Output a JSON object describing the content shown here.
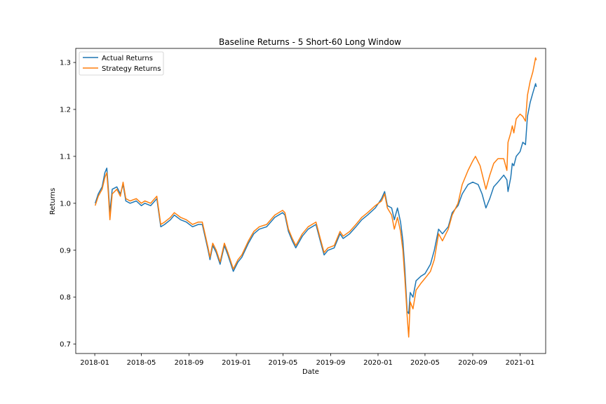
{
  "chart_data": {
    "type": "line",
    "title": "Baseline Returns - 5 Short-60 Long Window",
    "xlabel": "Date",
    "ylabel": "Returns",
    "x_ticks": [
      "2018-01",
      "2018-05",
      "2018-09",
      "2019-01",
      "2019-05",
      "2019-09",
      "2020-01",
      "2020-05",
      "2020-09",
      "2021-01"
    ],
    "y_ticks": [
      "0.7",
      "0.8",
      "0.9",
      "1.0",
      "1.1",
      "1.2",
      "1.3"
    ],
    "xlim": [
      "2017-11-13",
      "2021-03-08"
    ],
    "ylim": [
      0.68,
      1.33
    ],
    "grid": false,
    "legend_position": "top-left",
    "series": [
      {
        "name": "Actual Returns",
        "color": "#1f77b4",
        "points": [
          [
            "2018-01-02",
            1.0
          ],
          [
            "2018-01-10",
            1.02
          ],
          [
            "2018-01-20",
            1.035
          ],
          [
            "2018-01-27",
            1.065
          ],
          [
            "2018-02-01",
            1.075
          ],
          [
            "2018-02-05",
            1.03
          ],
          [
            "2018-02-09",
            0.98
          ],
          [
            "2018-02-15",
            1.03
          ],
          [
            "2018-02-27",
            1.035
          ],
          [
            "2018-03-08",
            1.02
          ],
          [
            "2018-03-15",
            1.04
          ],
          [
            "2018-03-22",
            1.005
          ],
          [
            "2018-04-02",
            1.0
          ],
          [
            "2018-04-18",
            1.005
          ],
          [
            "2018-05-01",
            0.995
          ],
          [
            "2018-05-10",
            1.0
          ],
          [
            "2018-05-25",
            0.995
          ],
          [
            "2018-06-10",
            1.01
          ],
          [
            "2018-06-20",
            0.95
          ],
          [
            "2018-06-30",
            0.955
          ],
          [
            "2018-07-15",
            0.965
          ],
          [
            "2018-07-25",
            0.975
          ],
          [
            "2018-08-10",
            0.965
          ],
          [
            "2018-08-25",
            0.96
          ],
          [
            "2018-09-10",
            0.95
          ],
          [
            "2018-09-25",
            0.955
          ],
          [
            "2018-10-05",
            0.955
          ],
          [
            "2018-10-12",
            0.93
          ],
          [
            "2018-10-20",
            0.9
          ],
          [
            "2018-10-25",
            0.88
          ],
          [
            "2018-11-01",
            0.91
          ],
          [
            "2018-11-10",
            0.895
          ],
          [
            "2018-11-20",
            0.87
          ],
          [
            "2018-12-01",
            0.91
          ],
          [
            "2018-12-10",
            0.89
          ],
          [
            "2018-12-24",
            0.855
          ],
          [
            "2019-01-05",
            0.875
          ],
          [
            "2019-01-15",
            0.885
          ],
          [
            "2019-02-01",
            0.915
          ],
          [
            "2019-02-15",
            0.935
          ],
          [
            "2019-03-01",
            0.945
          ],
          [
            "2019-03-20",
            0.95
          ],
          [
            "2019-04-10",
            0.97
          ],
          [
            "2019-04-30",
            0.98
          ],
          [
            "2019-05-06",
            0.975
          ],
          [
            "2019-05-15",
            0.94
          ],
          [
            "2019-05-25",
            0.92
          ],
          [
            "2019-06-03",
            0.905
          ],
          [
            "2019-06-20",
            0.93
          ],
          [
            "2019-07-05",
            0.945
          ],
          [
            "2019-07-25",
            0.955
          ],
          [
            "2019-08-05",
            0.92
          ],
          [
            "2019-08-15",
            0.89
          ],
          [
            "2019-08-25",
            0.9
          ],
          [
            "2019-09-10",
            0.905
          ],
          [
            "2019-09-25",
            0.935
          ],
          [
            "2019-10-03",
            0.925
          ],
          [
            "2019-10-20",
            0.935
          ],
          [
            "2019-11-05",
            0.95
          ],
          [
            "2019-11-20",
            0.965
          ],
          [
            "2019-12-05",
            0.975
          ],
          [
            "2019-12-25",
            0.99
          ],
          [
            "2020-01-10",
            1.01
          ],
          [
            "2020-01-18",
            1.025
          ],
          [
            "2020-01-25",
            0.995
          ],
          [
            "2020-02-05",
            0.99
          ],
          [
            "2020-02-12",
            0.965
          ],
          [
            "2020-02-20",
            0.99
          ],
          [
            "2020-02-28",
            0.96
          ],
          [
            "2020-03-05",
            0.92
          ],
          [
            "2020-03-10",
            0.86
          ],
          [
            "2020-03-16",
            0.77
          ],
          [
            "2020-03-20",
            0.765
          ],
          [
            "2020-03-24",
            0.81
          ],
          [
            "2020-03-31",
            0.8
          ],
          [
            "2020-04-08",
            0.835
          ],
          [
            "2020-04-21",
            0.845
          ],
          [
            "2020-05-01",
            0.85
          ],
          [
            "2020-05-15",
            0.87
          ],
          [
            "2020-05-25",
            0.9
          ],
          [
            "2020-06-05",
            0.945
          ],
          [
            "2020-06-15",
            0.935
          ],
          [
            "2020-06-30",
            0.95
          ],
          [
            "2020-07-10",
            0.98
          ],
          [
            "2020-07-25",
            0.995
          ],
          [
            "2020-08-05",
            1.02
          ],
          [
            "2020-08-20",
            1.04
          ],
          [
            "2020-09-01",
            1.045
          ],
          [
            "2020-09-15",
            1.04
          ],
          [
            "2020-09-25",
            1.02
          ],
          [
            "2020-10-05",
            0.99
          ],
          [
            "2020-10-15",
            1.01
          ],
          [
            "2020-10-25",
            1.035
          ],
          [
            "2020-11-05",
            1.045
          ],
          [
            "2020-11-20",
            1.06
          ],
          [
            "2020-11-28",
            1.05
          ],
          [
            "2020-12-01",
            1.025
          ],
          [
            "2020-12-08",
            1.055
          ],
          [
            "2020-12-12",
            1.085
          ],
          [
            "2020-12-16",
            1.08
          ],
          [
            "2020-12-22",
            1.1
          ],
          [
            "2021-01-01",
            1.11
          ],
          [
            "2021-01-08",
            1.13
          ],
          [
            "2021-01-15",
            1.125
          ],
          [
            "2021-01-20",
            1.185
          ],
          [
            "2021-01-27",
            1.215
          ],
          [
            "2021-02-03",
            1.235
          ],
          [
            "2021-02-10",
            1.255
          ],
          [
            "2021-02-12",
            1.248
          ]
        ]
      },
      {
        "name": "Strategy Returns",
        "color": "#ff7f0e",
        "points": [
          [
            "2018-01-02",
            0.995
          ],
          [
            "2018-01-10",
            1.015
          ],
          [
            "2018-01-20",
            1.03
          ],
          [
            "2018-01-27",
            1.055
          ],
          [
            "2018-02-01",
            1.065
          ],
          [
            "2018-02-05",
            1.02
          ],
          [
            "2018-02-09",
            0.965
          ],
          [
            "2018-02-15",
            1.02
          ],
          [
            "2018-02-27",
            1.03
          ],
          [
            "2018-03-08",
            1.015
          ],
          [
            "2018-03-15",
            1.045
          ],
          [
            "2018-03-22",
            1.01
          ],
          [
            "2018-04-02",
            1.005
          ],
          [
            "2018-04-18",
            1.01
          ],
          [
            "2018-05-01",
            1.0
          ],
          [
            "2018-05-10",
            1.005
          ],
          [
            "2018-05-25",
            1.0
          ],
          [
            "2018-06-10",
            1.015
          ],
          [
            "2018-06-20",
            0.955
          ],
          [
            "2018-06-30",
            0.96
          ],
          [
            "2018-07-15",
            0.97
          ],
          [
            "2018-07-25",
            0.98
          ],
          [
            "2018-08-10",
            0.97
          ],
          [
            "2018-08-25",
            0.965
          ],
          [
            "2018-09-10",
            0.955
          ],
          [
            "2018-09-25",
            0.96
          ],
          [
            "2018-10-05",
            0.96
          ],
          [
            "2018-10-12",
            0.935
          ],
          [
            "2018-10-20",
            0.905
          ],
          [
            "2018-10-25",
            0.885
          ],
          [
            "2018-11-01",
            0.915
          ],
          [
            "2018-11-10",
            0.9
          ],
          [
            "2018-11-20",
            0.875
          ],
          [
            "2018-12-01",
            0.915
          ],
          [
            "2018-12-10",
            0.895
          ],
          [
            "2018-12-24",
            0.86
          ],
          [
            "2019-01-05",
            0.88
          ],
          [
            "2019-01-15",
            0.89
          ],
          [
            "2019-02-01",
            0.92
          ],
          [
            "2019-02-15",
            0.94
          ],
          [
            "2019-03-01",
            0.95
          ],
          [
            "2019-03-20",
            0.955
          ],
          [
            "2019-04-10",
            0.975
          ],
          [
            "2019-04-30",
            0.985
          ],
          [
            "2019-05-06",
            0.98
          ],
          [
            "2019-05-15",
            0.945
          ],
          [
            "2019-05-25",
            0.925
          ],
          [
            "2019-06-03",
            0.91
          ],
          [
            "2019-06-20",
            0.935
          ],
          [
            "2019-07-05",
            0.95
          ],
          [
            "2019-07-25",
            0.96
          ],
          [
            "2019-08-05",
            0.925
          ],
          [
            "2019-08-15",
            0.895
          ],
          [
            "2019-08-25",
            0.905
          ],
          [
            "2019-09-10",
            0.91
          ],
          [
            "2019-09-25",
            0.94
          ],
          [
            "2019-10-03",
            0.93
          ],
          [
            "2019-10-20",
            0.94
          ],
          [
            "2019-11-05",
            0.955
          ],
          [
            "2019-11-20",
            0.97
          ],
          [
            "2019-12-05",
            0.98
          ],
          [
            "2019-12-25",
            0.995
          ],
          [
            "2020-01-10",
            1.005
          ],
          [
            "2020-01-18",
            1.02
          ],
          [
            "2020-01-25",
            0.99
          ],
          [
            "2020-02-05",
            0.975
          ],
          [
            "2020-02-12",
            0.945
          ],
          [
            "2020-02-20",
            0.97
          ],
          [
            "2020-02-28",
            0.94
          ],
          [
            "2020-03-05",
            0.9
          ],
          [
            "2020-03-10",
            0.84
          ],
          [
            "2020-03-16",
            0.76
          ],
          [
            "2020-03-20",
            0.715
          ],
          [
            "2020-03-24",
            0.79
          ],
          [
            "2020-03-31",
            0.775
          ],
          [
            "2020-04-08",
            0.815
          ],
          [
            "2020-04-21",
            0.83
          ],
          [
            "2020-05-01",
            0.84
          ],
          [
            "2020-05-15",
            0.855
          ],
          [
            "2020-05-25",
            0.88
          ],
          [
            "2020-06-05",
            0.935
          ],
          [
            "2020-06-15",
            0.92
          ],
          [
            "2020-06-30",
            0.945
          ],
          [
            "2020-07-10",
            0.975
          ],
          [
            "2020-07-25",
            1.0
          ],
          [
            "2020-08-05",
            1.04
          ],
          [
            "2020-08-20",
            1.07
          ],
          [
            "2020-09-01",
            1.09
          ],
          [
            "2020-09-08",
            1.1
          ],
          [
            "2020-09-20",
            1.08
          ],
          [
            "2020-10-05",
            1.03
          ],
          [
            "2020-10-15",
            1.06
          ],
          [
            "2020-10-25",
            1.085
          ],
          [
            "2020-11-05",
            1.095
          ],
          [
            "2020-11-20",
            1.095
          ],
          [
            "2020-11-28",
            1.07
          ],
          [
            "2020-12-01",
            1.13
          ],
          [
            "2020-12-08",
            1.15
          ],
          [
            "2020-12-12",
            1.165
          ],
          [
            "2020-12-16",
            1.15
          ],
          [
            "2020-12-22",
            1.18
          ],
          [
            "2021-01-01",
            1.19
          ],
          [
            "2021-01-08",
            1.185
          ],
          [
            "2021-01-15",
            1.175
          ],
          [
            "2021-01-20",
            1.23
          ],
          [
            "2021-01-27",
            1.26
          ],
          [
            "2021-02-03",
            1.28
          ],
          [
            "2021-02-10",
            1.31
          ],
          [
            "2021-02-12",
            1.305
          ]
        ]
      }
    ]
  }
}
